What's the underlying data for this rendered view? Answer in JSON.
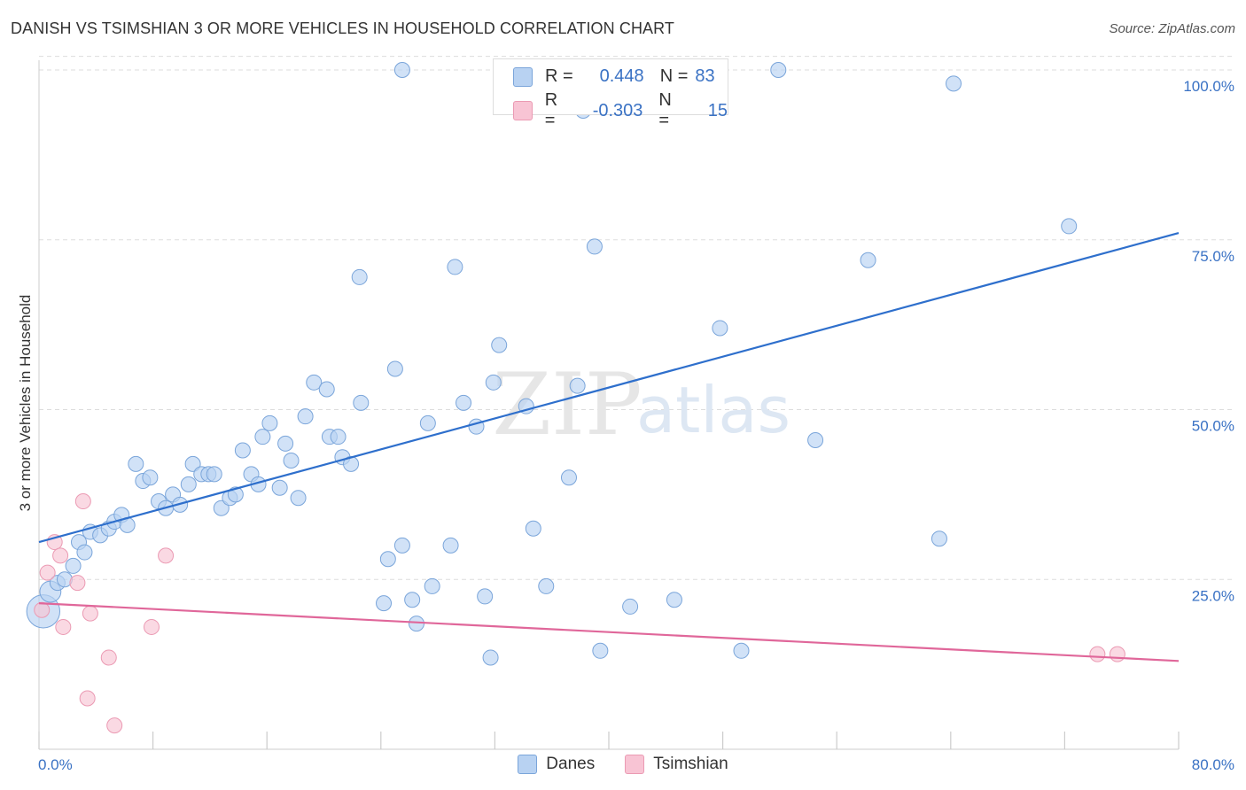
{
  "header": {
    "title": "DANISH VS TSIMSHIAN 3 OR MORE VEHICLES IN HOUSEHOLD CORRELATION CHART",
    "source": "Source: ZipAtlas.com"
  },
  "watermark": {
    "zip": "ZIP",
    "atlas": "atlas"
  },
  "stats": {
    "danes": {
      "r_label": "R =",
      "r_value": "0.448",
      "n_label": "N =",
      "n_value": "83"
    },
    "tsimshian": {
      "r_label": "R =",
      "r_value": "-0.303",
      "n_label": "N =",
      "n_value": "15"
    }
  },
  "colors": {
    "danes_fill": "#b8d2f2",
    "danes_stroke": "#7aa5da",
    "danes_line": "#2e6fcc",
    "tsimshian_fill": "#f8c4d4",
    "tsimshian_stroke": "#eb9ab3",
    "tsimshian_line": "#e0679a",
    "tick_label": "#3a72c4",
    "grid": "#dddddd"
  },
  "chart_data": {
    "type": "scatter",
    "title": "DANISH VS TSIMSHIAN 3 OR MORE VEHICLES IN HOUSEHOLD CORRELATION CHART",
    "xlabel": "",
    "ylabel": "3 or more Vehicles in Household",
    "xlim": [
      0,
      80
    ],
    "ylim": [
      0,
      103
    ],
    "x_tick_labels": [
      "0.0%",
      "80.0%"
    ],
    "y_ticks": [
      25,
      50,
      75,
      100
    ],
    "y_tick_labels": [
      "25.0%",
      "50.0%",
      "75.0%",
      "100.0%"
    ],
    "grid": true,
    "legend_position": "bottom-center",
    "series": [
      {
        "name": "Danes",
        "trend": {
          "x": [
            0,
            80
          ],
          "y": [
            30.5,
            76
          ]
        },
        "points": [
          [
            0.3,
            20.3,
            2.2
          ],
          [
            0.8,
            23.2,
            1.4
          ],
          [
            1.3,
            24.5,
            1
          ],
          [
            1.8,
            25,
            1
          ],
          [
            2.4,
            27,
            1
          ],
          [
            2.8,
            30.5,
            1
          ],
          [
            3.2,
            29,
            1
          ],
          [
            3.6,
            32,
            1
          ],
          [
            4.3,
            31.5,
            1
          ],
          [
            4.9,
            32.5,
            1
          ],
          [
            5.3,
            33.5,
            1
          ],
          [
            5.8,
            34.5,
            1
          ],
          [
            6.2,
            33,
            1
          ],
          [
            6.8,
            42,
            1
          ],
          [
            7.3,
            39.5,
            1
          ],
          [
            7.8,
            40,
            1
          ],
          [
            8.4,
            36.5,
            1
          ],
          [
            8.9,
            35.5,
            1
          ],
          [
            9.4,
            37.5,
            1
          ],
          [
            9.9,
            36,
            1
          ],
          [
            10.5,
            39,
            1
          ],
          [
            10.8,
            42,
            1
          ],
          [
            11.4,
            40.5,
            1
          ],
          [
            11.9,
            40.5,
            1
          ],
          [
            12.3,
            40.5,
            1
          ],
          [
            12.8,
            35.5,
            1
          ],
          [
            13.4,
            37,
            1
          ],
          [
            13.8,
            37.5,
            1
          ],
          [
            14.3,
            44,
            1
          ],
          [
            14.9,
            40.5,
            1
          ],
          [
            15.4,
            39,
            1
          ],
          [
            15.7,
            46,
            1
          ],
          [
            16.2,
            48,
            1
          ],
          [
            16.9,
            38.5,
            1
          ],
          [
            17.3,
            45,
            1
          ],
          [
            17.7,
            42.5,
            1
          ],
          [
            18.2,
            37,
            1
          ],
          [
            18.7,
            49,
            1
          ],
          [
            19.3,
            54,
            1
          ],
          [
            20.2,
            53,
            1
          ],
          [
            20.4,
            46,
            1
          ],
          [
            21.0,
            46,
            1
          ],
          [
            21.3,
            43,
            1
          ],
          [
            21.9,
            42,
            1
          ],
          [
            22.6,
            51,
            1
          ],
          [
            22.5,
            69.5,
            1
          ],
          [
            24.5,
            28,
            1
          ],
          [
            24.2,
            21.5,
            1
          ],
          [
            25.0,
            56,
            1
          ],
          [
            25.5,
            30,
            1
          ],
          [
            26.2,
            22,
            1
          ],
          [
            26.5,
            18.5,
            1
          ],
          [
            27.3,
            48,
            1
          ],
          [
            27.6,
            24,
            1
          ],
          [
            25.5,
            100,
            1
          ],
          [
            28.9,
            30,
            1
          ],
          [
            29.2,
            71,
            1
          ],
          [
            29.8,
            51,
            1
          ],
          [
            30.7,
            47.5,
            1
          ],
          [
            31.3,
            22.5,
            1
          ],
          [
            31.7,
            13.5,
            1
          ],
          [
            32.3,
            59.5,
            1
          ],
          [
            31.9,
            54,
            1
          ],
          [
            34.2,
            50.5,
            1
          ],
          [
            34.7,
            32.5,
            1
          ],
          [
            35.6,
            24,
            1
          ],
          [
            37.2,
            40,
            1
          ],
          [
            37.8,
            53.5,
            1
          ],
          [
            38.2,
            94,
            1
          ],
          [
            39.0,
            74,
            1
          ],
          [
            39.4,
            14.5,
            1
          ],
          [
            41.5,
            21,
            1
          ],
          [
            43.5,
            100,
            1
          ],
          [
            44.6,
            22,
            1
          ],
          [
            47.8,
            62,
            1
          ],
          [
            49.3,
            14.5,
            1
          ],
          [
            51.9,
            100,
            1
          ],
          [
            54.5,
            45.5,
            1
          ],
          [
            58.2,
            72,
            1
          ],
          [
            63.2,
            31,
            1
          ],
          [
            64.2,
            98,
            1
          ],
          [
            72.3,
            77,
            1
          ],
          [
            44.9,
            100.2,
            1
          ]
        ]
      },
      {
        "name": "Tsimshian",
        "trend": {
          "x": [
            0,
            80
          ],
          "y": [
            21.5,
            13
          ]
        },
        "points": [
          [
            0.2,
            20.5,
            1
          ],
          [
            0.6,
            26,
            1
          ],
          [
            1.1,
            30.5,
            1
          ],
          [
            1.5,
            28.5,
            1
          ],
          [
            1.7,
            18,
            1
          ],
          [
            2.7,
            24.5,
            1
          ],
          [
            3.1,
            36.5,
            1
          ],
          [
            3.4,
            7.5,
            1
          ],
          [
            3.6,
            20,
            1
          ],
          [
            4.9,
            13.5,
            1
          ],
          [
            5.3,
            3.5,
            1
          ],
          [
            7.9,
            18,
            1
          ],
          [
            8.9,
            28.5,
            1
          ],
          [
            74.3,
            14,
            1
          ],
          [
            75.7,
            14,
            1
          ]
        ]
      }
    ]
  }
}
